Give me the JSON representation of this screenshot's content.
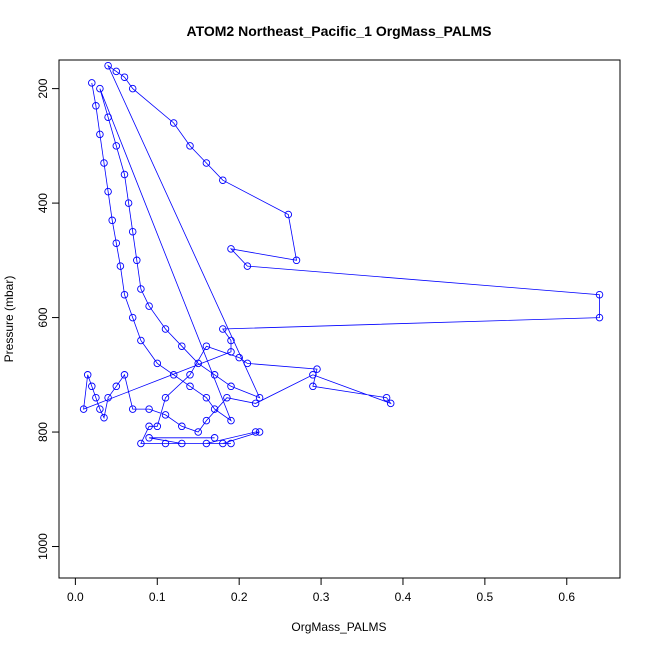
{
  "chart_data": {
    "type": "scatter",
    "title": "ATOM2 Northeast_Pacific_1 OrgMass_PALMS",
    "xlabel": "OrgMass_PALMS",
    "ylabel": "Pressure (mbar)",
    "xlim": [
      -0.02,
      0.665
    ],
    "ylim": [
      150,
      1055
    ],
    "y_reversed": true,
    "x_ticks": [
      0.0,
      0.1,
      0.2,
      0.3,
      0.4,
      0.5,
      0.6
    ],
    "x_tick_labels": [
      "0.0",
      "0.1",
      "0.2",
      "0.3",
      "0.4",
      "0.5",
      "0.6"
    ],
    "y_ticks": [
      200,
      400,
      600,
      800,
      1000
    ],
    "y_tick_labels": [
      "200",
      "400",
      "600",
      "800",
      "1000"
    ],
    "grid": false,
    "marker": "open-circle",
    "color": "#0000ff",
    "series": [
      {
        "name": "",
        "x": [
          0.02,
          0.025,
          0.03,
          0.035,
          0.04,
          0.045,
          0.05,
          0.055,
          0.06,
          0.07,
          0.08,
          0.1,
          0.12,
          0.14,
          0.16,
          0.17,
          0.19,
          0.03,
          0.04,
          0.05,
          0.06,
          0.065,
          0.07,
          0.075,
          0.08,
          0.09,
          0.11,
          0.13,
          0.15,
          0.17,
          0.19,
          0.225,
          0.04,
          0.05,
          0.06,
          0.07,
          0.12,
          0.14,
          0.16,
          0.18,
          0.26,
          0.27,
          0.19,
          0.21,
          0.64,
          0.64,
          0.18,
          0.19,
          0.19,
          0.01,
          0.015,
          0.02,
          0.025,
          0.03,
          0.035,
          0.04,
          0.05,
          0.06,
          0.07,
          0.09,
          0.11,
          0.13,
          0.15,
          0.16,
          0.185,
          0.22,
          0.29,
          0.385,
          0.38,
          0.29,
          0.295,
          0.21,
          0.2,
          0.16,
          0.14,
          0.11,
          0.1,
          0.09,
          0.08,
          0.16,
          0.22,
          0.225,
          0.18,
          0.19,
          0.11,
          0.13,
          0.09,
          0.17
        ],
        "y": [
          190,
          230,
          280,
          330,
          380,
          430,
          470,
          510,
          560,
          600,
          640,
          680,
          700,
          720,
          740,
          760,
          780,
          200,
          250,
          300,
          350,
          400,
          450,
          500,
          550,
          580,
          620,
          650,
          680,
          700,
          720,
          740,
          160,
          170,
          180,
          200,
          260,
          300,
          330,
          360,
          420,
          500,
          480,
          510,
          560,
          600,
          620,
          640,
          660,
          760,
          700,
          720,
          740,
          760,
          775,
          740,
          720,
          700,
          760,
          760,
          770,
          790,
          800,
          780,
          740,
          750,
          700,
          750,
          740,
          720,
          690,
          680,
          670,
          650,
          700,
          740,
          790,
          790,
          820,
          820,
          800,
          800,
          820,
          820,
          820,
          820,
          810,
          810
        ]
      }
    ]
  }
}
